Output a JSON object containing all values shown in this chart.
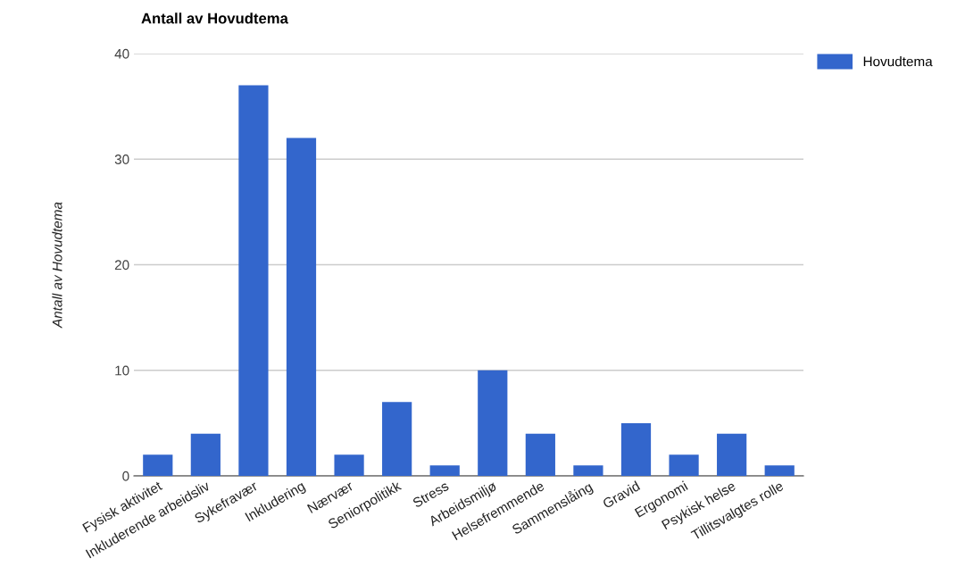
{
  "chart_data": {
    "type": "bar",
    "title": "Antall av Hovudtema",
    "ylabel": "Antall av Hovudtema",
    "categories": [
      "Fysisk aktivitet",
      "Inkluderende arbeidsliv",
      "Sykefravær",
      "Inkludering",
      "Nærvær",
      "Seniorpolitikk",
      "Stress",
      "Arbeidsmiljø",
      "Helsefremmende",
      "Sammenslåing",
      "Gravid",
      "Ergonomi",
      "Psykisk helse",
      "Tillitsvalgtes rolle"
    ],
    "series": [
      {
        "name": "Hovudtema",
        "color": "#3366cc",
        "values": [
          2,
          4,
          37,
          32,
          2,
          7,
          1,
          10,
          4,
          1,
          5,
          2,
          4,
          1
        ]
      }
    ],
    "ylim": [
      0,
      40
    ],
    "yticks": [
      0,
      10,
      20,
      30,
      40
    ],
    "grid": "y",
    "legend": "top right"
  }
}
